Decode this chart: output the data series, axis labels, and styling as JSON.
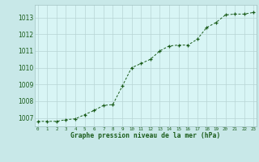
{
  "x": [
    0,
    1,
    2,
    3,
    4,
    5,
    6,
    7,
    8,
    9,
    10,
    11,
    12,
    13,
    14,
    15,
    16,
    17,
    18,
    19,
    20,
    21,
    22,
    23
  ],
  "y": [
    1006.8,
    1006.8,
    1006.8,
    1006.9,
    1006.95,
    1007.2,
    1007.45,
    1007.75,
    1007.8,
    1008.9,
    1010.0,
    1010.25,
    1010.5,
    1011.0,
    1011.3,
    1011.35,
    1011.35,
    1011.7,
    1012.4,
    1012.7,
    1013.15,
    1013.2,
    1013.2,
    1013.3
  ],
  "ylim": [
    1006.5,
    1013.75
  ],
  "xlim": [
    -0.3,
    23.3
  ],
  "yticks": [
    1007,
    1008,
    1009,
    1010,
    1011,
    1012,
    1013
  ],
  "xtick_labels": [
    "0",
    "1",
    "2",
    "3",
    "4",
    "5",
    "6",
    "7",
    "8",
    "9",
    "10",
    "11",
    "12",
    "13",
    "14",
    "15",
    "16",
    "17",
    "18",
    "19",
    "20",
    "21",
    "22",
    "23"
  ],
  "line_color": "#1a5c1a",
  "marker_color": "#1a5c1a",
  "bg_color": "#d8f5f5",
  "grid_color": "#b8d4d4",
  "xlabel": "Graphe pression niveau de la mer (hPa)",
  "xlabel_color": "#1a5c1a",
  "tick_color": "#1a5c1a",
  "figure_bg": "#c8e8e8",
  "spine_color": "#a0c0c0"
}
